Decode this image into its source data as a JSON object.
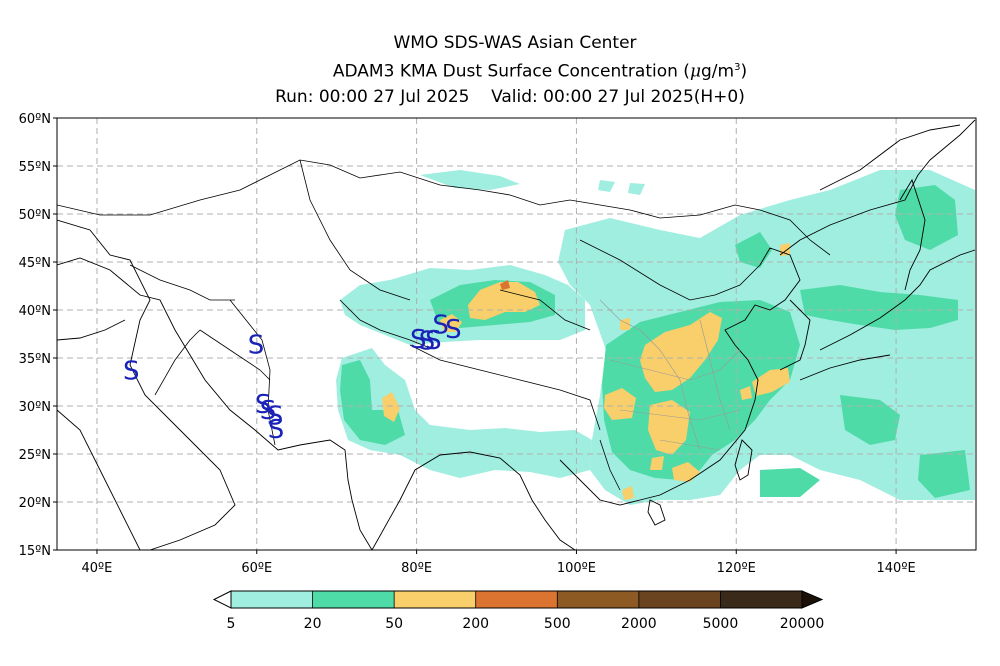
{
  "header": {
    "line1": "WMO SDS-WAS Asian Center",
    "line2_text": "ADAM3 KMA Dust Surface Concentration",
    "line2_unit_mu": "μ",
    "line2_unit_g": "g/m",
    "line2_unit_exp": "3",
    "line3": "Run: 00:00 27 Jul 2025    Valid: 00:00 27 Jul 2025(H+0)"
  },
  "map": {
    "lon_range": [
      35,
      150
    ],
    "lat_range": [
      15,
      60
    ],
    "lat_ticks": [
      {
        "value": 60,
        "label": "60ºN"
      },
      {
        "value": 55,
        "label": "55ºN"
      },
      {
        "value": 50,
        "label": "50ºN"
      },
      {
        "value": 45,
        "label": "45ºN"
      },
      {
        "value": 40,
        "label": "40ºN"
      },
      {
        "value": 35,
        "label": "35ºN"
      },
      {
        "value": 30,
        "label": "30ºN"
      },
      {
        "value": 25,
        "label": "25ºN"
      },
      {
        "value": 20,
        "label": "20ºN"
      },
      {
        "value": 15,
        "label": "15ºN"
      }
    ],
    "lon_ticks": [
      {
        "value": 40,
        "label": "40ºE"
      },
      {
        "value": 60,
        "label": "60ºE"
      },
      {
        "value": 80,
        "label": "80ºE"
      },
      {
        "value": 100,
        "label": "100ºE"
      },
      {
        "value": 120,
        "label": "120ºE"
      },
      {
        "value": 140,
        "label": "140ºE"
      }
    ],
    "grid": true,
    "dust_symbol": "S",
    "dust_symbol_color": "#1a22b8",
    "dust_markers": [
      {
        "lon": 44.3,
        "lat": 33.7
      },
      {
        "lon": 59.9,
        "lat": 36.4
      },
      {
        "lon": 60.8,
        "lat": 30.2
      },
      {
        "lon": 61.4,
        "lat": 29.6
      },
      {
        "lon": 62.3,
        "lat": 29.0
      },
      {
        "lon": 62.4,
        "lat": 27.6
      },
      {
        "lon": 80.2,
        "lat": 37.0
      },
      {
        "lon": 81.3,
        "lat": 36.8
      },
      {
        "lon": 82.1,
        "lat": 36.9
      },
      {
        "lon": 83.0,
        "lat": 38.5
      },
      {
        "lon": 84.6,
        "lat": 38.0
      }
    ]
  },
  "colorbar": {
    "levels": [
      "5",
      "20",
      "50",
      "200",
      "500",
      "2000",
      "5000",
      "20000"
    ],
    "colors": [
      "#9feee0",
      "#4fdba8",
      "#f8cf6a",
      "#db7431",
      "#8e5a24",
      "#6a4320",
      "#3a2a1a"
    ],
    "under_color": "#ffffff",
    "over_color": "#1a1008"
  }
}
